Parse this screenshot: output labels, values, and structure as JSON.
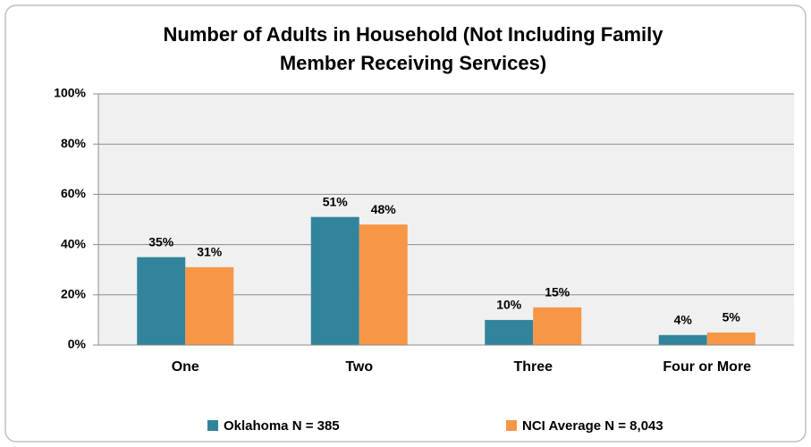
{
  "chart_data": {
    "type": "bar",
    "title": [
      "Number of Adults in Household (Not Including Family",
      "Member Receiving Services)"
    ],
    "categories": [
      "One",
      "Two",
      "Three",
      "Four or More"
    ],
    "series": [
      {
        "name": "Oklahoma N = 385",
        "color": "#31849b",
        "values": [
          35,
          51,
          10,
          4
        ],
        "value_labels": [
          "35%",
          "51%",
          "10%",
          "4%"
        ]
      },
      {
        "name": "NCI Average N = 8,043",
        "color": "#f79646",
        "values": [
          31,
          48,
          15,
          5
        ],
        "value_labels": [
          "31%",
          "48%",
          "15%",
          "5%"
        ]
      }
    ],
    "ylim": [
      0,
      100
    ],
    "yticks": [
      {
        "value": 0,
        "label": "0%"
      },
      {
        "value": 20,
        "label": "20%"
      },
      {
        "value": 40,
        "label": "40%"
      },
      {
        "value": 60,
        "label": "60%"
      },
      {
        "value": 80,
        "label": "80%"
      },
      {
        "value": 100,
        "label": "100%"
      }
    ],
    "grid": true,
    "legend": "bottom"
  }
}
